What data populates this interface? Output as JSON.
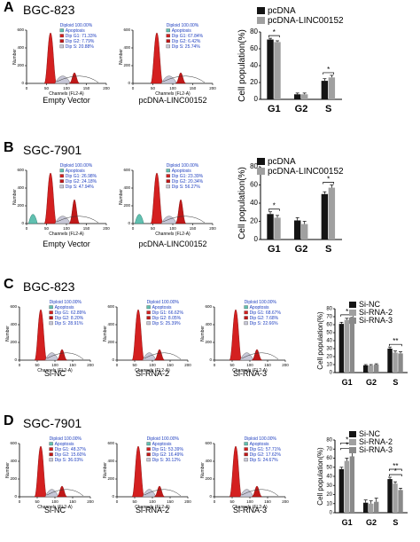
{
  "colors": {
    "g1_peak": "#d42020",
    "g2_peak": "#c01818",
    "s_phase": "#c8c8d8",
    "apoptosis": "#60c0b0",
    "legend_text": "#2040c0",
    "bar_black": "#141414",
    "bar_gray": "#a0a0a0",
    "bar_gray2": "#8a8a8a"
  },
  "panels": [
    {
      "letter": "A",
      "cell_line": "BGC-823",
      "histograms": [
        {
          "caption": "Empty Vector",
          "axis_label": "Channels (FL2-A)",
          "y_label": "Number",
          "legend": [
            "Diploid 100.00%",
            "Apoptosis",
            "Dip G1: 71.33%",
            "Dip G2: 7.79%",
            "Dip S: 20.88%"
          ],
          "ymax_label": "600",
          "show_apoptosis_peak": false
        },
        {
          "caption": "pcDNA-LINC00152",
          "axis_label": "Channels (FL2-A)",
          "y_label": "Number",
          "legend": [
            "Diploid 100.00%",
            "Apoptosis",
            "Dip G1: 67.84%",
            "Dip G2: 6.42%",
            "Dip S: 25.74%"
          ],
          "ymax_label": "600",
          "show_apoptosis_peak": false
        }
      ]
    },
    {
      "letter": "B",
      "cell_line": "SGC-7901",
      "histograms": [
        {
          "caption": "Empty Vector",
          "axis_label": "Channels (FL2-A)",
          "y_label": "Number",
          "legend": [
            "Diploid 100.00%",
            "Apoptosis",
            "Dip G1: 26.98%",
            "Dip G2: 24.18%",
            "Dip S: 47.94%"
          ],
          "ymax_label": "600",
          "show_apoptosis_peak": true
        },
        {
          "caption": "pcDNA-LINC00152",
          "axis_label": "Channels (FL2-A)",
          "y_label": "Number",
          "legend": [
            "Diploid 100.00%",
            "Apoptosis",
            "Dip G1: 23.39%",
            "Dip G2: 20.34%",
            "Dip S: 56.27%"
          ],
          "ymax_label": "600",
          "show_apoptosis_peak": true
        }
      ]
    },
    {
      "letter": "C",
      "cell_line": "BGC-823",
      "histograms": [
        {
          "caption": "Si-NC",
          "axis_label": "Channels (FL2-A)",
          "y_label": "Number",
          "legend": [
            "Diploid 100.00%",
            "Apoptosis",
            "Dip G1: 62.89%",
            "Dip G2: 8.20%",
            "Dip S: 28.91%"
          ],
          "ymax_label": "",
          "show_apoptosis_peak": false
        },
        {
          "caption": "Si-RNA-2",
          "axis_label": "Channels (FL2-A)",
          "y_label": "Number",
          "legend": [
            "Diploid 100.00%",
            "Apoptosis",
            "Dip G1: 66.62%",
            "Dip G2: 8.05%",
            "Dip S: 25.39%"
          ],
          "ymax_label": "",
          "show_apoptosis_peak": false
        },
        {
          "caption": "Si-RNA-3",
          "axis_label": "Channels (FL2-A)",
          "y_label": "Number",
          "legend": [
            "Diploid 100.00%",
            "Apoptosis",
            "Dip G1: 68.67%",
            "Dip G2: 7.68%",
            "Dip S: 22.66%"
          ],
          "ymax_label": "",
          "show_apoptosis_peak": false
        }
      ]
    },
    {
      "letter": "D",
      "cell_line": "SGC-7901",
      "histograms": [
        {
          "caption": "Si-NC",
          "axis_label": "Channels (FL2-A)",
          "y_label": "Number",
          "legend": [
            "Diploid 100.00%",
            "Apoptosis",
            "Dip G1: 48.37%",
            "Dip G2: 15.60%",
            "Dip S: 36.03%"
          ],
          "ymax_label": "",
          "show_apoptosis_peak": false
        },
        {
          "caption": "Si-RNA-2",
          "axis_label": "Channels (FL2-A)",
          "y_label": "Number",
          "legend": [
            "Diploid 100.00%",
            "Apoptosis",
            "Dip G1: 53.39%",
            "Dip G2: 16.49%",
            "Dip S: 30.12%"
          ],
          "ymax_label": "",
          "show_apoptosis_peak": false
        },
        {
          "caption": "Si-RNA-3",
          "axis_label": "Channels (FL2-A)",
          "y_label": "Number",
          "legend": [
            "Diploid 100.00%",
            "Apoptosis",
            "Dip G1: 57.71%",
            "Dip G2: 17.62%",
            "Dip S: 24.67%"
          ],
          "ymax_label": "",
          "show_apoptosis_peak": false
        }
      ]
    }
  ],
  "chart_data": [
    {
      "type": "bar",
      "panel": "A",
      "ylabel": "Cell population(%)",
      "categories": [
        "G1",
        "G2",
        "S"
      ],
      "ylim": [
        0,
        80
      ],
      "yticks": [
        0,
        20,
        40,
        60,
        80
      ],
      "series": [
        {
          "name": "pcDNA",
          "values": [
            71,
            6,
            22
          ],
          "errors": [
            1.5,
            1.5,
            2.5
          ]
        },
        {
          "name": "pcDNA-LINC00152",
          "values": [
            68,
            6,
            26
          ],
          "errors": [
            1.5,
            1.5,
            2.5
          ]
        }
      ],
      "significance": [
        {
          "category": "G1",
          "label": "*"
        },
        {
          "category": "S",
          "label": "*"
        }
      ]
    },
    {
      "type": "bar",
      "panel": "B",
      "ylabel": "Cell population(%)",
      "categories": [
        "G1",
        "G2",
        "S"
      ],
      "ylim": [
        0,
        80
      ],
      "yticks": [
        0,
        20,
        40,
        60,
        80
      ],
      "series": [
        {
          "name": "pcDNA",
          "values": [
            28,
            21,
            50
          ],
          "errors": [
            2.5,
            3,
            2.5
          ]
        },
        {
          "name": "pcDNA-LINC00152",
          "values": [
            24,
            17,
            57
          ],
          "errors": [
            2.5,
            3,
            3
          ]
        }
      ],
      "significance": [
        {
          "category": "G1",
          "label": "*"
        },
        {
          "category": "S",
          "label": "*"
        }
      ]
    },
    {
      "type": "bar",
      "panel": "C",
      "ylabel": "Cell population(%)",
      "categories": [
        "G1",
        "G2",
        "S"
      ],
      "ylim": [
        0,
        80
      ],
      "yticks": [
        0,
        10,
        20,
        30,
        40,
        50,
        60,
        70,
        80
      ],
      "series": [
        {
          "name": "Si-NC",
          "values": [
            61,
            9,
            30
          ],
          "errors": [
            2,
            1,
            2
          ]
        },
        {
          "name": "Si-RNA-2",
          "values": [
            66,
            9,
            25
          ],
          "errors": [
            2,
            1,
            2
          ]
        },
        {
          "name": "Si-RNA-3",
          "values": [
            67,
            10,
            24
          ],
          "errors": [
            2,
            1,
            2
          ]
        }
      ],
      "significance": [
        {
          "category": "G1",
          "label": "*"
        },
        {
          "category": "S",
          "label": "**"
        }
      ]
    },
    {
      "type": "bar",
      "panel": "D",
      "ylabel": "Cell population(%)",
      "categories": [
        "G1",
        "G2",
        "S"
      ],
      "ylim": [
        0,
        80
      ],
      "yticks": [
        0,
        10,
        20,
        30,
        40,
        50,
        60,
        70,
        80
      ],
      "series": [
        {
          "name": "Si-NC",
          "values": [
            48,
            11,
            37
          ],
          "errors": [
            2,
            3,
            2
          ]
        },
        {
          "name": "Si-RNA-2",
          "values": [
            57,
            10,
            32
          ],
          "errors": [
            3,
            3,
            2
          ]
        },
        {
          "name": "Si-RNA-3",
          "values": [
            62,
            12,
            25
          ],
          "errors": [
            6,
            4,
            2
          ]
        }
      ],
      "significance": [
        {
          "category": "G1",
          "label": "*"
        },
        {
          "category": "G1",
          "label": "*"
        },
        {
          "category": "S",
          "label": "*"
        },
        {
          "category": "S",
          "label": "**"
        }
      ]
    }
  ]
}
